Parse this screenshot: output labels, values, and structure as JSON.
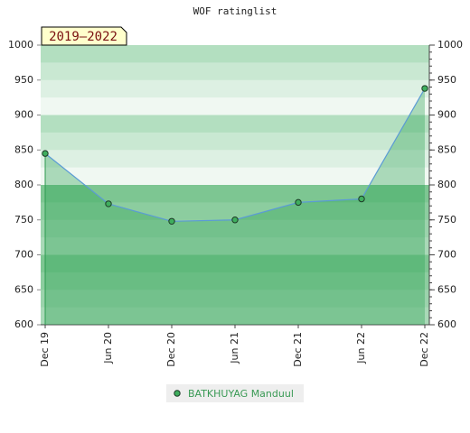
{
  "chart_data": {
    "type": "line",
    "title": "WOF ratinglist",
    "annotation": "2019–2022",
    "categories": [
      "Dec 19",
      "Jun 20",
      "Dec 20",
      "Jun 21",
      "Dec 21",
      "Jun 22",
      "Dec 22"
    ],
    "series": [
      {
        "name": "BATKHUYAG Manduul",
        "color": "#5b9bd5",
        "values": [
          845,
          773,
          748,
          750,
          775,
          780,
          938
        ]
      }
    ],
    "ylim": [
      600,
      1000
    ],
    "yticks": [
      600,
      650,
      700,
      750,
      800,
      850,
      900,
      950,
      1000
    ],
    "y2lim": [
      600,
      1000
    ],
    "y2ticks": [
      600,
      650,
      700,
      750,
      800,
      850,
      900,
      950,
      1000
    ]
  }
}
